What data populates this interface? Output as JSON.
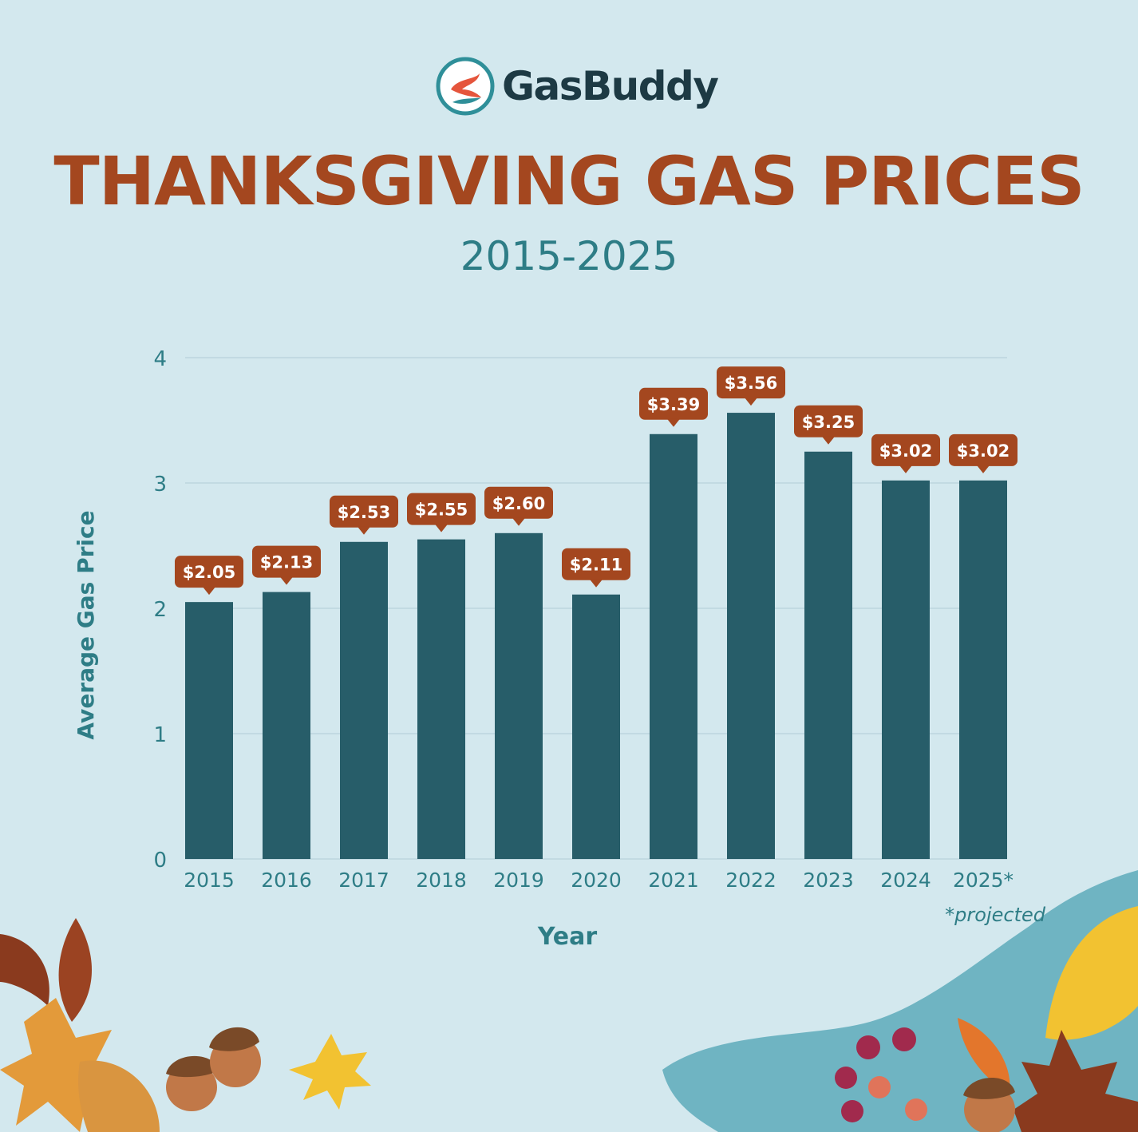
{
  "brand": {
    "name": "GasBuddy",
    "logo_icon": "road-swoosh-icon"
  },
  "header": {
    "title": "THANKSGIVING GAS PRICES",
    "subtitle": "2015-2025"
  },
  "footnote": "*projected",
  "colors": {
    "bar": "#275d69",
    "label_bg": "#a4471f",
    "axis_text": "#2e7d86",
    "title": "#a4471f",
    "background": "#d3e8ee"
  },
  "chart_data": {
    "type": "bar",
    "xlabel": "Year",
    "ylabel": "Average Gas Price",
    "categories": [
      "2015",
      "2016",
      "2017",
      "2018",
      "2019",
      "2020",
      "2021",
      "2022",
      "2023",
      "2024",
      "2025*"
    ],
    "values": [
      2.05,
      2.13,
      2.53,
      2.55,
      2.6,
      2.11,
      3.39,
      3.56,
      3.25,
      3.02,
      3.02
    ],
    "data_labels": [
      "$2.05",
      "$2.13",
      "$2.53",
      "$2.55",
      "$2.60",
      "$2.11",
      "$3.39",
      "$3.56",
      "$3.25",
      "$3.02",
      "$3.02"
    ],
    "yticks": [
      "0",
      "1",
      "2",
      "3",
      "4"
    ],
    "ylim": [
      0,
      4
    ],
    "grid": true
  }
}
